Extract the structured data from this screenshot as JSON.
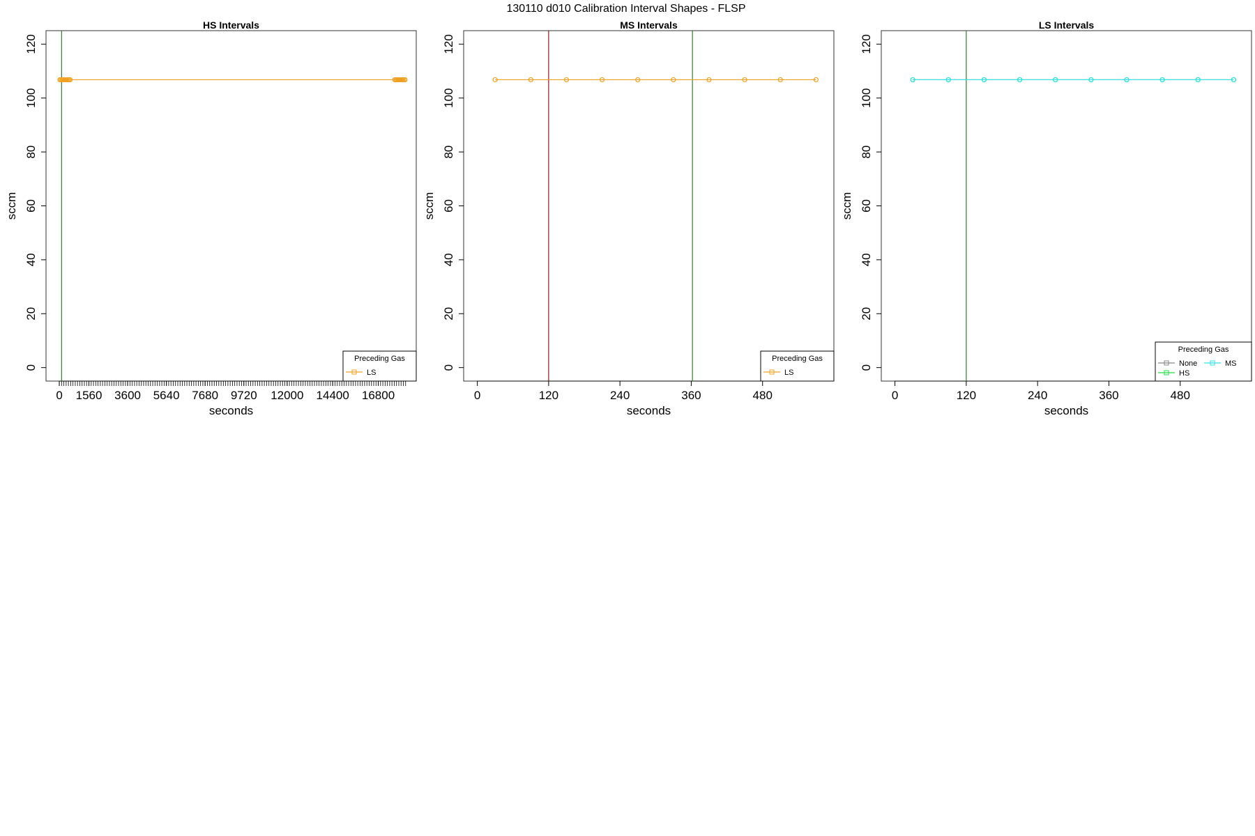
{
  "figure_title": "130110   d010   Calibration Interval Shapes - FLSP",
  "chart_data": [
    {
      "type": "line",
      "title": "HS Intervals",
      "xlabel": "seconds",
      "ylabel": "sccm",
      "xlim": [
        -700,
        18800
      ],
      "ylim": [
        -5,
        125
      ],
      "y_ticks": [
        0,
        20,
        40,
        60,
        80,
        100,
        120
      ],
      "x_tick_labels": [
        {
          "value": 0,
          "label": "0"
        },
        {
          "value": 1560,
          "label": "1560"
        },
        {
          "value": 3600,
          "label": "3600"
        },
        {
          "value": 5640,
          "label": "5640"
        },
        {
          "value": 7680,
          "label": "7680"
        },
        {
          "value": 9720,
          "label": "9720"
        },
        {
          "value": 12000,
          "label": "12000"
        },
        {
          "value": 14400,
          "label": "14400"
        },
        {
          "value": 16800,
          "label": "16800"
        }
      ],
      "minor_tick_start": 0,
      "minor_tick_end": 18240,
      "minor_tick_step": 120,
      "vlines": [
        {
          "x": 120,
          "color": "#2e7d32"
        }
      ],
      "series": [
        {
          "name": "LS",
          "color": "#f0a020",
          "x": [
            30,
            90,
            150,
            210,
            270,
            330,
            390,
            450,
            510,
            570,
            17670,
            17730,
            17790,
            17850,
            17910,
            17970,
            18030,
            18090,
            18150,
            18210
          ],
          "y": [
            106.8,
            106.8,
            106.8,
            106.8,
            106.8,
            106.8,
            106.8,
            106.8,
            106.8,
            106.8,
            106.8,
            106.8,
            106.8,
            106.8,
            106.8,
            106.8,
            106.8,
            106.8,
            106.8,
            106.8
          ]
        }
      ],
      "legend": {
        "title": "Preceding Gas",
        "position": "bottom-right",
        "entries": [
          {
            "name": "LS",
            "color": "#f0a020"
          }
        ]
      }
    },
    {
      "type": "line",
      "title": "MS Intervals",
      "xlabel": "seconds",
      "ylabel": "sccm",
      "xlim": [
        -23,
        600
      ],
      "ylim": [
        -5,
        125
      ],
      "y_ticks": [
        0,
        20,
        40,
        60,
        80,
        100,
        120
      ],
      "x_tick_labels": [
        {
          "value": 0,
          "label": "0"
        },
        {
          "value": 120,
          "label": "120"
        },
        {
          "value": 240,
          "label": "240"
        },
        {
          "value": 360,
          "label": "360"
        },
        {
          "value": 480,
          "label": "480"
        }
      ],
      "vlines": [
        {
          "x": 120,
          "color": "#8b1a1a"
        },
        {
          "x": 362,
          "color": "#2e7d32"
        }
      ],
      "series": [
        {
          "name": "LS",
          "color": "#f0a020",
          "x": [
            30,
            90,
            150,
            210,
            270,
            330,
            390,
            450,
            510,
            570
          ],
          "y": [
            106.8,
            106.8,
            106.8,
            106.8,
            106.8,
            106.8,
            106.8,
            106.8,
            106.8,
            106.8
          ]
        }
      ],
      "legend": {
        "title": "Preceding Gas",
        "position": "bottom-right",
        "entries": [
          {
            "name": "LS",
            "color": "#f0a020"
          }
        ]
      }
    },
    {
      "type": "line",
      "title": "LS Intervals",
      "xlabel": "seconds",
      "ylabel": "sccm",
      "xlim": [
        -23,
        600
      ],
      "ylim": [
        -5,
        125
      ],
      "y_ticks": [
        0,
        20,
        40,
        60,
        80,
        100,
        120
      ],
      "x_tick_labels": [
        {
          "value": 0,
          "label": "0"
        },
        {
          "value": 120,
          "label": "120"
        },
        {
          "value": 240,
          "label": "240"
        },
        {
          "value": 360,
          "label": "360"
        },
        {
          "value": 480,
          "label": "480"
        }
      ],
      "vlines": [
        {
          "x": 120,
          "color": "#2e7d32"
        }
      ],
      "series": [
        {
          "name": "HS",
          "color": "#22dd44",
          "x": [
            30,
            90,
            150,
            210,
            270,
            330,
            390,
            450,
            510,
            570
          ],
          "y": [
            106.8,
            106.8,
            106.8,
            106.8,
            106.8,
            106.8,
            106.8,
            106.8,
            106.8,
            106.8
          ]
        },
        {
          "name": "MS",
          "color": "#33e0e8",
          "x": [
            30,
            90,
            150,
            210,
            270,
            330,
            390,
            450,
            510,
            570
          ],
          "y": [
            106.8,
            106.8,
            106.8,
            106.8,
            106.8,
            106.8,
            106.8,
            106.8,
            106.8,
            106.8
          ]
        }
      ],
      "legend": {
        "title": "Preceding Gas",
        "position": "bottom-right",
        "entries": [
          {
            "name": "None",
            "color": "#888888"
          },
          {
            "name": "MS",
            "color": "#33e0e8"
          },
          {
            "name": "HS",
            "color": "#22dd44"
          }
        ]
      }
    }
  ]
}
